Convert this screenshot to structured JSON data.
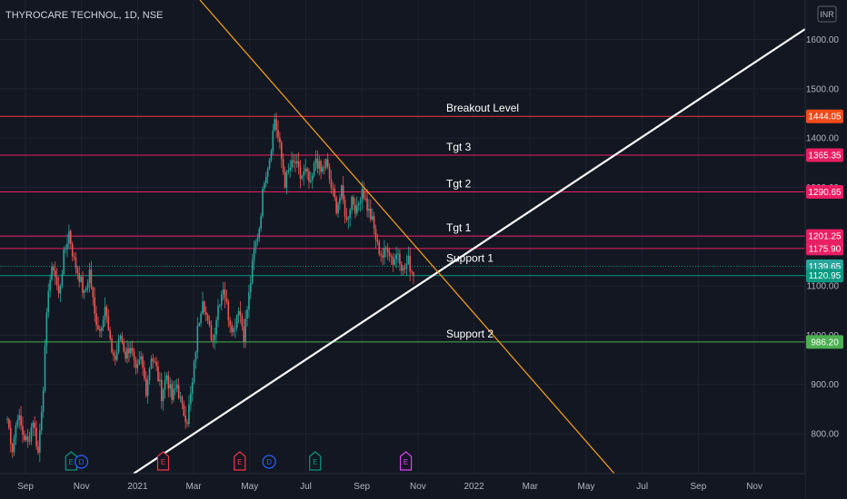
{
  "header": {
    "title": "THYROCARE TECHNOL, 1D, NSE",
    "currency": "INR"
  },
  "colors": {
    "background": "#131722",
    "grid": "#1f2330",
    "axis_text": "#b2b5be",
    "bull": "#26a69a",
    "bear": "#ef5350",
    "resistance_line": "#f23645",
    "target_line": "#e91e63",
    "support_line": "#089981",
    "support2_line": "#4caf50",
    "trend_up": "#ffffff",
    "trend_down": "#f7a21b",
    "badge_breakout": "#f24c1a",
    "badge_target": "#e91e63",
    "badge_support": "#089981",
    "badge_support_alt": "#26a69a",
    "badge_support2": "#4caf50"
  },
  "chart_data": {
    "type": "candlestick",
    "title": "THYROCARE TECHNOL, 1D, NSE",
    "x_ticks": [
      "Sep",
      "Nov",
      "2021",
      "Mar",
      "May",
      "Jul",
      "Sep",
      "Nov",
      "2022",
      "Mar",
      "May",
      "Jul",
      "Sep",
      "Nov"
    ],
    "y_ticks": [
      "1600.00",
      "1500.00",
      "1400.00",
      "1300.00",
      "1200.00",
      "1100.00",
      "1000.00",
      "900.00",
      "800.00"
    ],
    "ylim": [
      720,
      1640
    ],
    "grid": true,
    "levels": [
      {
        "label": "Breakout Level",
        "value": 1444.05,
        "badge": "1444.05",
        "color": "#f23645",
        "badge_color": "#f24c1a"
      },
      {
        "label": "Tgt 3",
        "value": 1365.35,
        "badge": "1365.35",
        "color": "#e91e63",
        "badge_color": "#e91e63"
      },
      {
        "label": "Tgt 2",
        "value": 1290.65,
        "badge": "1290.65",
        "color": "#e91e63",
        "badge_color": "#e91e63"
      },
      {
        "label": "Tgt 1",
        "value": 1201.25,
        "badge": "1201.25",
        "color": "#e91e63",
        "badge_color": "#e91e63"
      },
      {
        "label": "",
        "value": 1175.9,
        "badge": "1175.90",
        "color": "#e91e63",
        "badge_color": "#e91e63"
      },
      {
        "label": "Support 1",
        "value": 1139.65,
        "badge": "1139.65",
        "color": "#089981",
        "badge_color": "#26a69a",
        "dotted": true
      },
      {
        "label": "",
        "value": 1120.95,
        "badge": "1120.95",
        "color": "#089981",
        "badge_color": "#089981"
      },
      {
        "label": "Support 2",
        "value": 986.2,
        "badge": "986.20",
        "color": "#4caf50",
        "badge_color": "#4caf50"
      }
    ],
    "trendlines": [
      {
        "name": "rising-support",
        "color": "#ffffff",
        "points": [
          [
            "Dec 2020",
            720
          ],
          [
            "Dec 2022",
            1630
          ]
        ]
      },
      {
        "name": "falling-resistance",
        "color": "#f7a21b",
        "points": [
          [
            "Feb 2020",
            1640
          ],
          [
            "Jun 2022",
            720
          ]
        ]
      }
    ],
    "price_path": [
      [
        0,
        830
      ],
      [
        3,
        770
      ],
      [
        6,
        840
      ],
      [
        9,
        800
      ],
      [
        12,
        780
      ],
      [
        15,
        830
      ],
      [
        18,
        760
      ],
      [
        21,
        900
      ],
      [
        24,
        1100
      ],
      [
        27,
        1140
      ],
      [
        30,
        1080
      ],
      [
        33,
        1160
      ],
      [
        36,
        1210
      ],
      [
        39,
        1150
      ],
      [
        42,
        1120
      ],
      [
        45,
        1080
      ],
      [
        48,
        1130
      ],
      [
        51,
        1040
      ],
      [
        54,
        1010
      ],
      [
        57,
        1060
      ],
      [
        60,
        980
      ],
      [
        63,
        950
      ],
      [
        66,
        1000
      ],
      [
        69,
        960
      ],
      [
        72,
        980
      ],
      [
        75,
        920
      ],
      [
        78,
        950
      ],
      [
        81,
        890
      ],
      [
        84,
        960
      ],
      [
        87,
        930
      ],
      [
        90,
        880
      ],
      [
        93,
        920
      ],
      [
        96,
        870
      ],
      [
        99,
        900
      ],
      [
        102,
        850
      ],
      [
        105,
        830
      ],
      [
        108,
        900
      ],
      [
        111,
        1010
      ],
      [
        114,
        1080
      ],
      [
        117,
        1020
      ],
      [
        120,
        990
      ],
      [
        123,
        1060
      ],
      [
        126,
        1100
      ],
      [
        129,
        1040
      ],
      [
        132,
        1010
      ],
      [
        135,
        1060
      ],
      [
        138,
        1000
      ],
      [
        141,
        1080
      ],
      [
        144,
        1170
      ],
      [
        147,
        1220
      ],
      [
        150,
        1320
      ],
      [
        153,
        1360
      ],
      [
        156,
        1440
      ],
      [
        159,
        1380
      ],
      [
        162,
        1310
      ],
      [
        165,
        1340
      ],
      [
        168,
        1350
      ],
      [
        171,
        1320
      ],
      [
        174,
        1330
      ],
      [
        177,
        1300
      ],
      [
        180,
        1360
      ],
      [
        183,
        1330
      ],
      [
        186,
        1350
      ],
      [
        189,
        1300
      ],
      [
        192,
        1260
      ],
      [
        195,
        1290
      ],
      [
        198,
        1230
      ],
      [
        201,
        1280
      ],
      [
        204,
        1250
      ],
      [
        207,
        1300
      ],
      [
        210,
        1260
      ],
      [
        213,
        1230
      ],
      [
        216,
        1180
      ],
      [
        219,
        1160
      ],
      [
        222,
        1180
      ],
      [
        225,
        1150
      ],
      [
        228,
        1170
      ],
      [
        231,
        1130
      ],
      [
        234,
        1150
      ],
      [
        237,
        1120
      ]
    ],
    "event_markers": [
      {
        "type": "earnings",
        "label": "E",
        "color": "#089981",
        "index": 50
      },
      {
        "type": "dividend",
        "label": "D",
        "color": "#2962ff",
        "index": 58
      },
      {
        "type": "earnings",
        "label": "E",
        "color": "#f23645",
        "index": 122
      },
      {
        "type": "earnings",
        "label": "E",
        "color": "#f23645",
        "index": 182
      },
      {
        "type": "dividend",
        "label": "D",
        "color": "#2962ff",
        "index": 205
      },
      {
        "type": "earnings",
        "label": "E",
        "color": "#089981",
        "index": 241
      },
      {
        "type": "earnings",
        "label": "E",
        "color": "#e040fb",
        "index": 312
      }
    ]
  }
}
